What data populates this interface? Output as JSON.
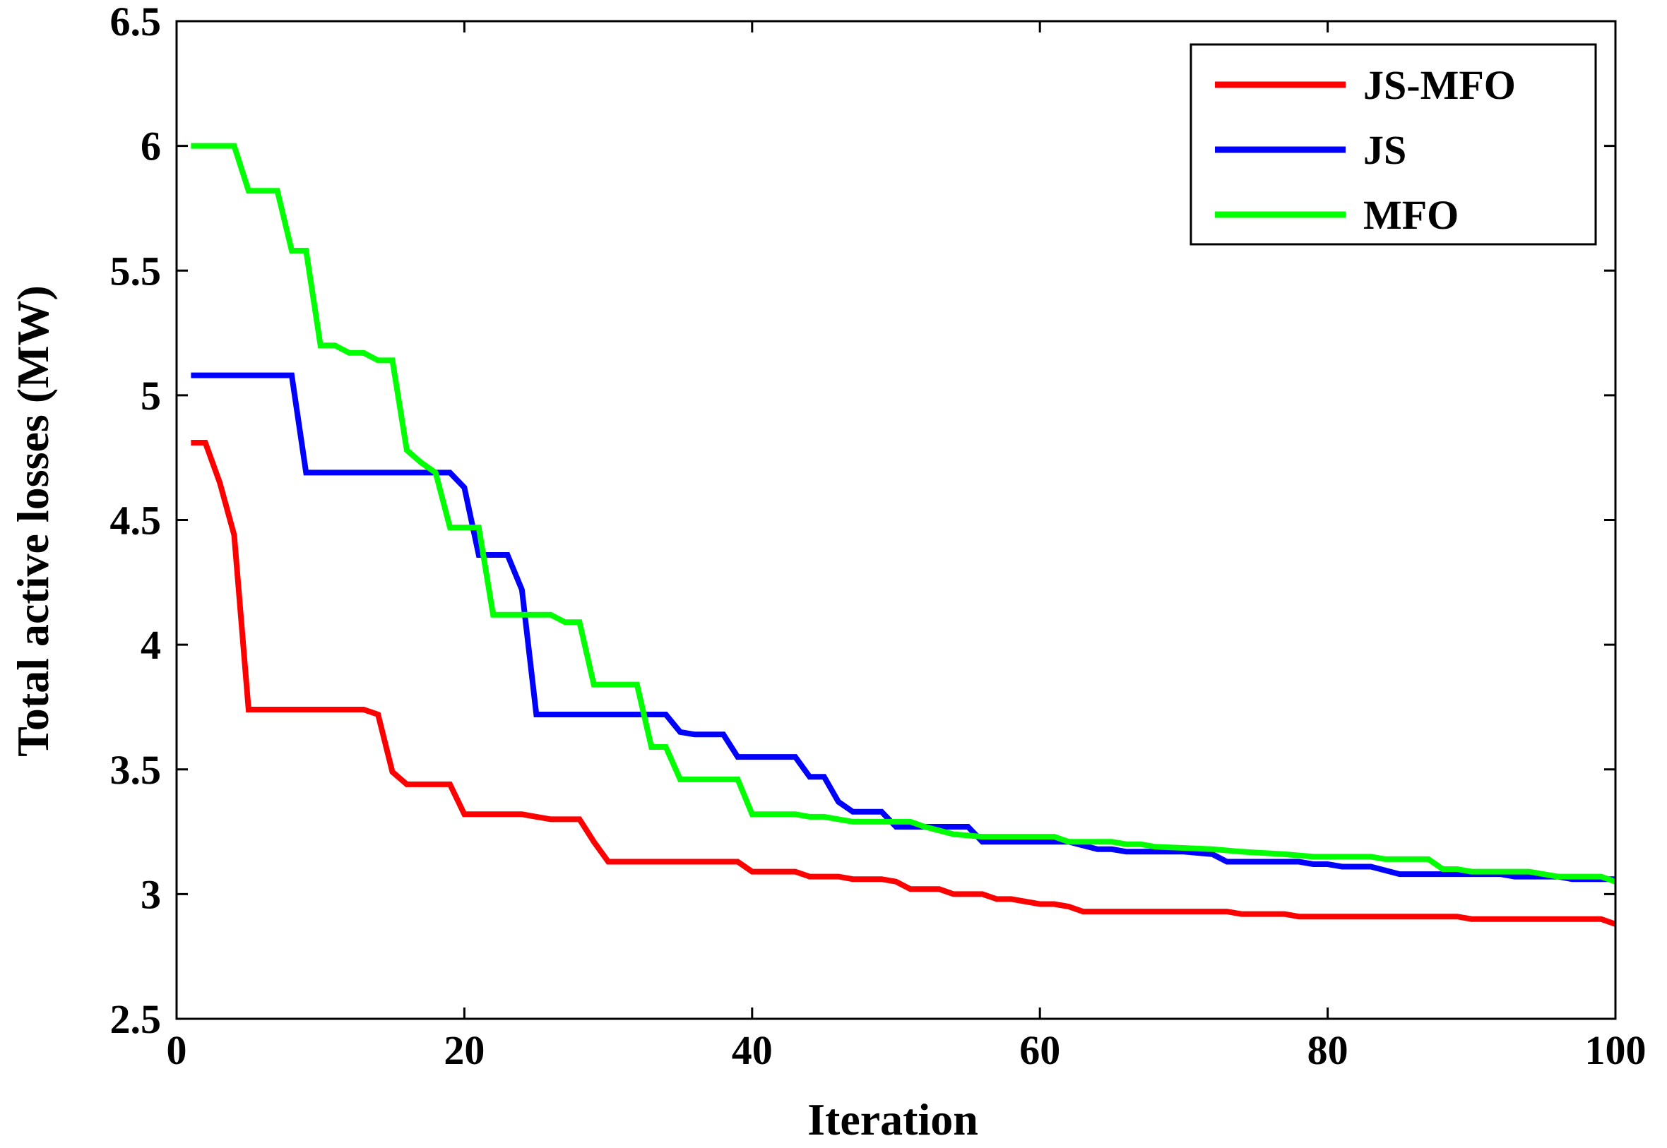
{
  "chart_data": {
    "type": "line",
    "title": "",
    "xlabel": "Iteration",
    "ylabel": "Total active losses (MW)",
    "xlim": [
      0,
      100
    ],
    "ylim": [
      2.5,
      6.5
    ],
    "xticks": [
      0,
      20,
      40,
      60,
      80,
      100
    ],
    "xtick_labels": [
      "0",
      "20",
      "40",
      "60",
      "80",
      "100"
    ],
    "yticks": [
      2.5,
      3,
      3.5,
      4,
      4.5,
      5,
      5.5,
      6,
      6.5
    ],
    "ytick_labels": [
      "2.5",
      "3",
      "3.5",
      "4",
      "4.5",
      "5",
      "5.5",
      "6",
      "6.5"
    ],
    "grid": false,
    "legend_position": "top-right",
    "series": [
      {
        "name": "JS-MFO",
        "color": "#ff0000",
        "points": [
          [
            1,
            4.81
          ],
          [
            2,
            4.81
          ],
          [
            3,
            4.65
          ],
          [
            4,
            4.44
          ],
          [
            5,
            3.74
          ],
          [
            13,
            3.74
          ],
          [
            14,
            3.72
          ],
          [
            15,
            3.49
          ],
          [
            16,
            3.44
          ],
          [
            19,
            3.44
          ],
          [
            20,
            3.32
          ],
          [
            24,
            3.32
          ],
          [
            26,
            3.3
          ],
          [
            28,
            3.3
          ],
          [
            29,
            3.21
          ],
          [
            30,
            3.13
          ],
          [
            39,
            3.13
          ],
          [
            40,
            3.09
          ],
          [
            43,
            3.09
          ],
          [
            44,
            3.07
          ],
          [
            46,
            3.07
          ],
          [
            47,
            3.06
          ],
          [
            49,
            3.06
          ],
          [
            50,
            3.05
          ],
          [
            51,
            3.02
          ],
          [
            53,
            3.02
          ],
          [
            54,
            3.0
          ],
          [
            56,
            3.0
          ],
          [
            57,
            2.98
          ],
          [
            58,
            2.98
          ],
          [
            60,
            2.96
          ],
          [
            61,
            2.96
          ],
          [
            62,
            2.95
          ],
          [
            63,
            2.93
          ],
          [
            73,
            2.93
          ],
          [
            74,
            2.92
          ],
          [
            77,
            2.92
          ],
          [
            78,
            2.91
          ],
          [
            89,
            2.91
          ],
          [
            90,
            2.9
          ],
          [
            99,
            2.9
          ],
          [
            100,
            2.88
          ]
        ]
      },
      {
        "name": "JS",
        "color": "#0000ff",
        "points": [
          [
            1,
            5.08
          ],
          [
            8,
            5.08
          ],
          [
            9,
            4.69
          ],
          [
            19,
            4.69
          ],
          [
            20,
            4.63
          ],
          [
            21,
            4.36
          ],
          [
            23,
            4.36
          ],
          [
            24,
            4.22
          ],
          [
            25,
            3.72
          ],
          [
            34,
            3.72
          ],
          [
            35,
            3.65
          ],
          [
            36,
            3.64
          ],
          [
            38,
            3.64
          ],
          [
            39,
            3.55
          ],
          [
            43,
            3.55
          ],
          [
            44,
            3.47
          ],
          [
            45,
            3.47
          ],
          [
            46,
            3.37
          ],
          [
            47,
            3.33
          ],
          [
            49,
            3.33
          ],
          [
            50,
            3.27
          ],
          [
            55,
            3.27
          ],
          [
            56,
            3.21
          ],
          [
            62,
            3.21
          ],
          [
            64,
            3.18
          ],
          [
            65,
            3.18
          ],
          [
            66,
            3.17
          ],
          [
            70,
            3.17
          ],
          [
            72,
            3.16
          ],
          [
            73,
            3.13
          ],
          [
            78,
            3.13
          ],
          [
            79,
            3.12
          ],
          [
            80,
            3.12
          ],
          [
            81,
            3.11
          ],
          [
            83,
            3.11
          ],
          [
            85,
            3.08
          ],
          [
            92,
            3.08
          ],
          [
            93,
            3.07
          ],
          [
            96,
            3.07
          ],
          [
            97,
            3.06
          ],
          [
            100,
            3.06
          ]
        ]
      },
      {
        "name": "MFO",
        "color": "#00ff00",
        "points": [
          [
            1,
            6.0
          ],
          [
            4,
            6.0
          ],
          [
            5,
            5.82
          ],
          [
            7,
            5.82
          ],
          [
            8,
            5.58
          ],
          [
            9,
            5.58
          ],
          [
            10,
            5.2
          ],
          [
            11,
            5.2
          ],
          [
            12,
            5.17
          ],
          [
            13,
            5.17
          ],
          [
            14,
            5.14
          ],
          [
            15,
            5.14
          ],
          [
            16,
            4.78
          ],
          [
            17,
            4.73
          ],
          [
            18,
            4.69
          ],
          [
            19,
            4.47
          ],
          [
            21,
            4.47
          ],
          [
            22,
            4.12
          ],
          [
            26,
            4.12
          ],
          [
            27,
            4.09
          ],
          [
            28,
            4.09
          ],
          [
            29,
            3.84
          ],
          [
            32,
            3.84
          ],
          [
            33,
            3.59
          ],
          [
            34,
            3.59
          ],
          [
            35,
            3.46
          ],
          [
            39,
            3.46
          ],
          [
            40,
            3.32
          ],
          [
            43,
            3.32
          ],
          [
            44,
            3.31
          ],
          [
            45,
            3.31
          ],
          [
            47,
            3.29
          ],
          [
            51,
            3.29
          ],
          [
            52,
            3.27
          ],
          [
            54,
            3.24
          ],
          [
            56,
            3.23
          ],
          [
            61,
            3.23
          ],
          [
            62,
            3.21
          ],
          [
            65,
            3.21
          ],
          [
            66,
            3.2
          ],
          [
            67,
            3.2
          ],
          [
            68,
            3.19
          ],
          [
            72,
            3.18
          ],
          [
            74,
            3.17
          ],
          [
            77,
            3.16
          ],
          [
            79,
            3.15
          ],
          [
            83,
            3.15
          ],
          [
            84,
            3.14
          ],
          [
            87,
            3.14
          ],
          [
            88,
            3.1
          ],
          [
            89,
            3.1
          ],
          [
            90,
            3.09
          ],
          [
            94,
            3.09
          ],
          [
            96,
            3.07
          ],
          [
            99,
            3.07
          ],
          [
            100,
            3.05
          ]
        ]
      }
    ]
  }
}
